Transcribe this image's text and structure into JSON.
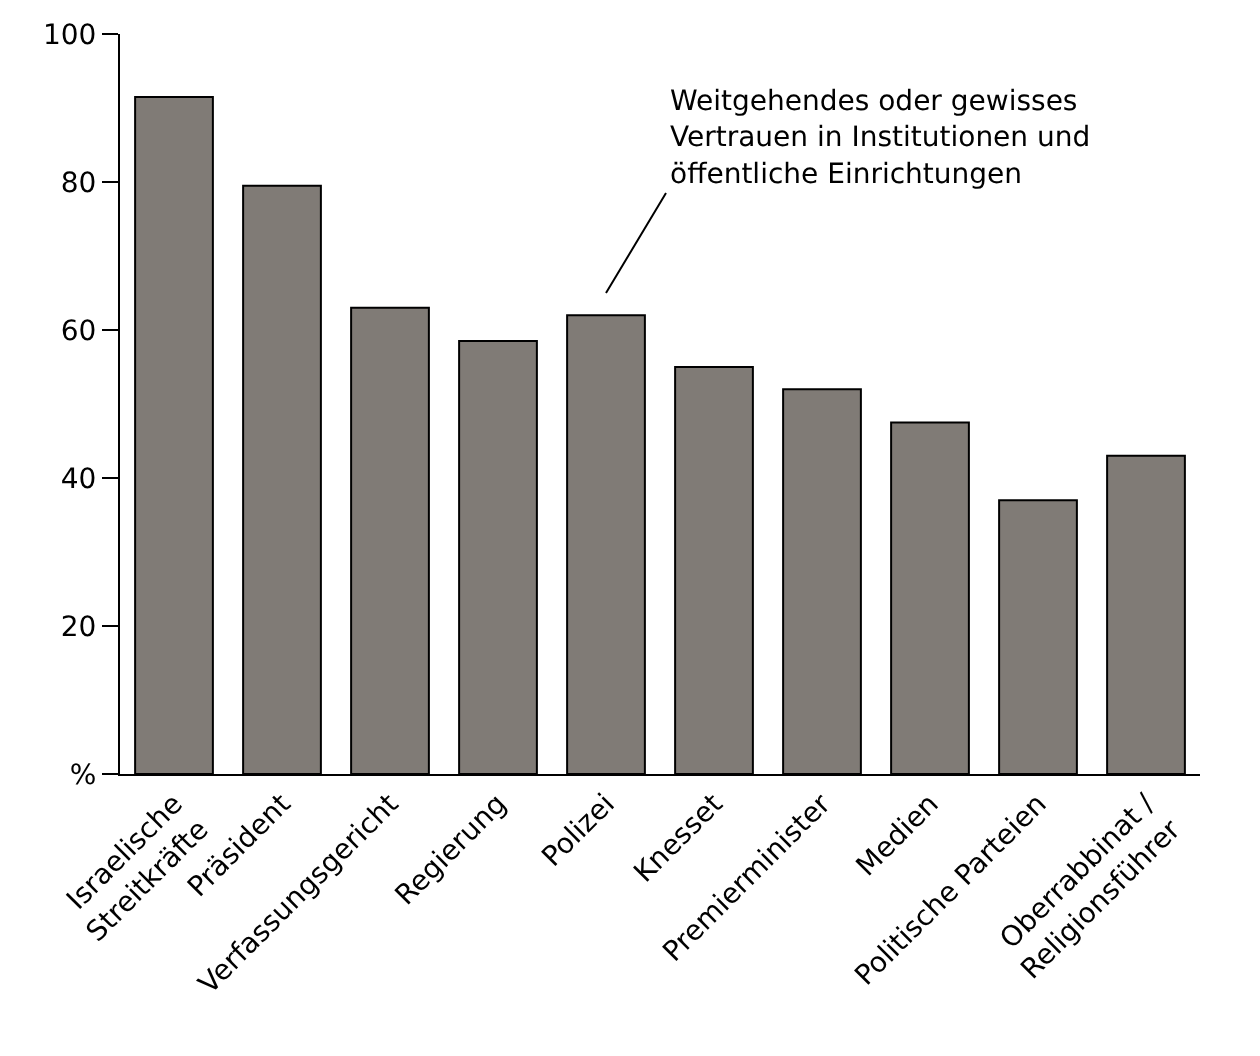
{
  "chart_data": {
    "type": "bar",
    "categories": [
      "Israelische\nStreitkräfte",
      "Präsident",
      "Verfassungsgericht",
      "Regierung",
      "Polizei",
      "Knesset",
      "Premierminister",
      "Medien",
      "Politische Parteien",
      "Oberrabbinat /\nReligionsführer"
    ],
    "values": [
      91.5,
      79.5,
      63,
      58.5,
      62,
      55,
      52,
      47.5,
      37,
      43
    ],
    "color": "#807b76",
    "ylim": [
      0,
      100
    ],
    "yticks": [
      {
        "value": 0,
        "label": "%"
      },
      20,
      40,
      60,
      80,
      100
    ],
    "grid": false,
    "annotations": [
      "Weitgehendes oder gewisses\nVertrauen in Institutionen und\nöffentliche Einrichtungen"
    ]
  }
}
